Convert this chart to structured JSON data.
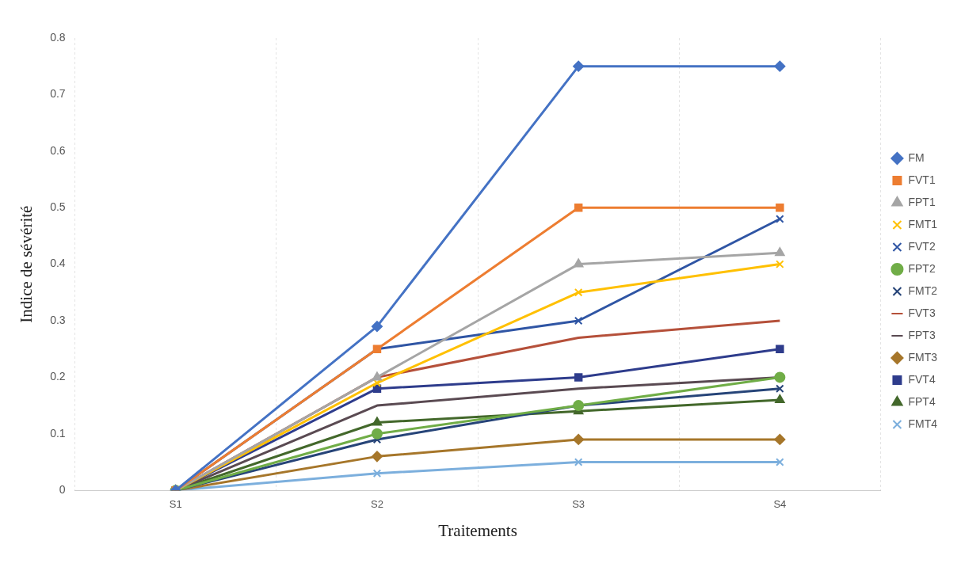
{
  "chart_data": {
    "type": "line",
    "xlabel": "Traitements",
    "ylabel": "Indice de sévérité",
    "categories": [
      "S1",
      "S2",
      "S3",
      "S4"
    ],
    "ylim": [
      0,
      0.8
    ],
    "yticks": [
      0,
      0.1,
      0.2,
      0.3,
      0.4,
      0.5,
      0.6,
      0.7,
      0.8
    ],
    "grid": "x",
    "legend": "right",
    "series": [
      {
        "name": "FM",
        "color": "#4472c4",
        "marker": "diamond",
        "values": [
          0,
          0.29,
          0.75,
          0.75
        ]
      },
      {
        "name": "FVT1",
        "color": "#ed7d31",
        "marker": "square",
        "values": [
          0,
          0.25,
          0.5,
          0.5
        ]
      },
      {
        "name": "FPT1",
        "color": "#a5a5a5",
        "marker": "triangle",
        "values": [
          0,
          0.2,
          0.4,
          0.42
        ]
      },
      {
        "name": "FMT1",
        "color": "#ffc000",
        "marker": "cross",
        "values": [
          0,
          0.19,
          0.35,
          0.4
        ]
      },
      {
        "name": "FVT2",
        "color": "#2f55a4",
        "marker": "cross",
        "values": [
          0,
          0.25,
          0.3,
          0.48
        ]
      },
      {
        "name": "FPT2",
        "color": "#70ad47",
        "marker": "circle",
        "values": [
          0,
          0.1,
          0.15,
          0.2
        ]
      },
      {
        "name": "FMT2",
        "color": "#264478",
        "marker": "cross",
        "values": [
          0,
          0.09,
          0.15,
          0.18
        ]
      },
      {
        "name": "FVT3",
        "color": "#b5503a",
        "marker": "none",
        "values": [
          0,
          0.2,
          0.27,
          0.3
        ]
      },
      {
        "name": "FPT3",
        "color": "#5a4a52",
        "marker": "none",
        "values": [
          0,
          0.15,
          0.18,
          0.2
        ]
      },
      {
        "name": "FMT3",
        "color": "#a6762a",
        "marker": "diamond",
        "values": [
          0,
          0.06,
          0.09,
          0.09
        ]
      },
      {
        "name": "FVT4",
        "color": "#2e3c8c",
        "marker": "square",
        "values": [
          0,
          0.18,
          0.2,
          0.25
        ]
      },
      {
        "name": "FPT4",
        "color": "#43682b",
        "marker": "triangle",
        "values": [
          0,
          0.12,
          0.14,
          0.16
        ]
      },
      {
        "name": "FMT4",
        "color": "#7cafdd",
        "marker": "cross",
        "values": [
          0,
          0.03,
          0.05,
          0.05
        ]
      }
    ]
  }
}
